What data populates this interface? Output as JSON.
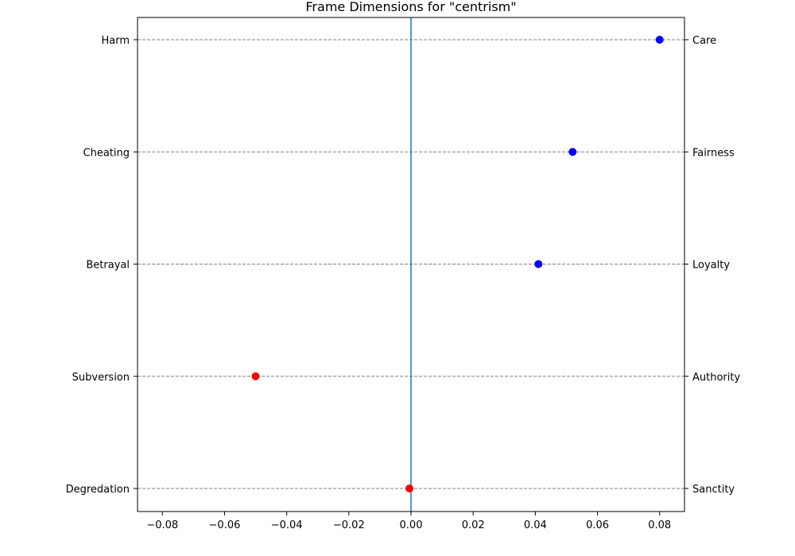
{
  "chart_data": {
    "type": "scatter",
    "title": "Frame Dimensions for \"centrism\"",
    "xlabel": "",
    "ylabel": "",
    "xlim": [
      -0.088,
      0.088
    ],
    "xticks": [
      -0.08,
      -0.06,
      -0.04,
      -0.02,
      0.0,
      0.02,
      0.04,
      0.06,
      0.08
    ],
    "xtick_labels": [
      "−0.08",
      "−0.06",
      "−0.04",
      "−0.02",
      "0.00",
      "0.02",
      "0.04",
      "0.06",
      "0.08"
    ],
    "left_labels": [
      "Harm",
      "Cheating",
      "Betrayal",
      "Subversion",
      "Degredation"
    ],
    "right_labels": [
      "Care",
      "Fairness",
      "Loyalty",
      "Authority",
      "Sanctity"
    ],
    "values": [
      0.08,
      0.052,
      0.041,
      -0.05,
      -0.0005
    ],
    "positive_color": "#0000ff",
    "negative_color": "#ff0000",
    "center_line_color": "#1f77b4",
    "grid_color": "#808080",
    "grid": true
  }
}
